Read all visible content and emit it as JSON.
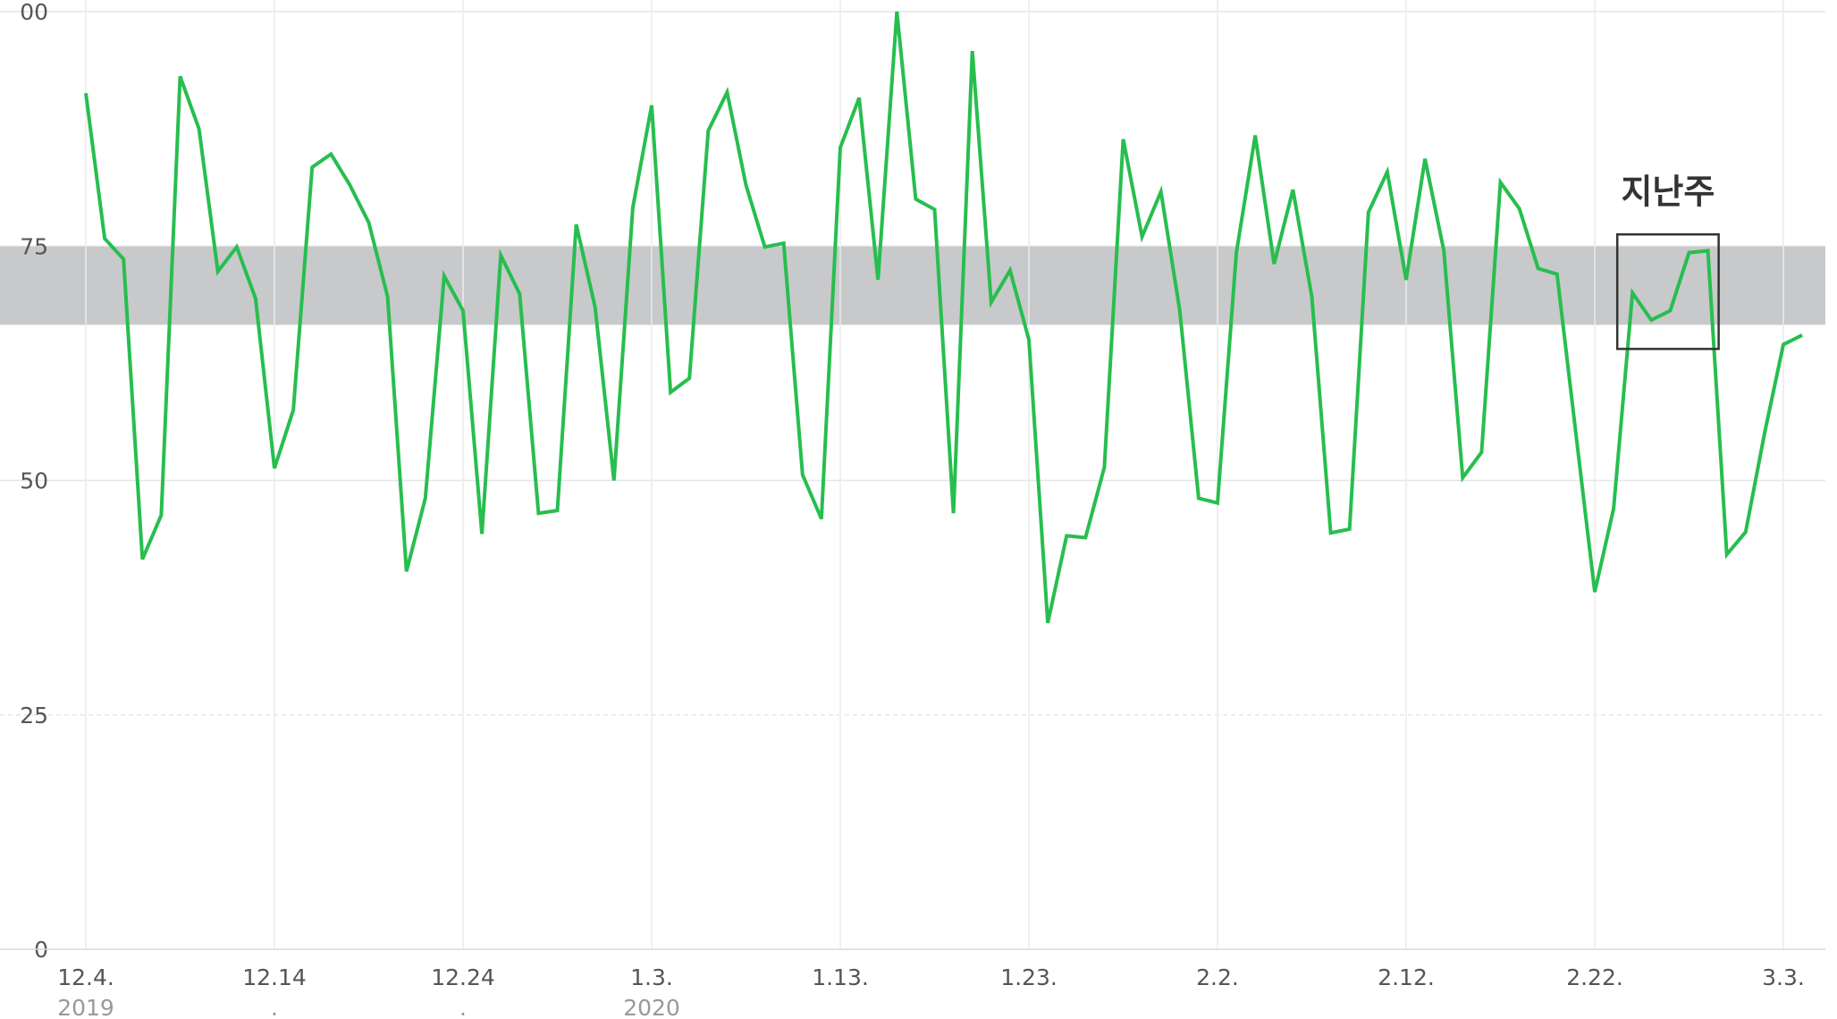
{
  "chart_data": {
    "type": "line",
    "categories": [
      "12.4.",
      null,
      null,
      null,
      null,
      null,
      null,
      null,
      null,
      null,
      "12.14",
      null,
      null,
      null,
      null,
      null,
      null,
      null,
      null,
      null,
      "12.24",
      null,
      null,
      null,
      null,
      null,
      null,
      null,
      null,
      null,
      "1.3.",
      null,
      null,
      null,
      null,
      null,
      null,
      null,
      null,
      null,
      "1.13.",
      null,
      null,
      null,
      null,
      null,
      null,
      null,
      null,
      null,
      "1.23.",
      null,
      null,
      null,
      null,
      null,
      null,
      null,
      null,
      null,
      "2.2.",
      null,
      null,
      null,
      null,
      null,
      null,
      null,
      null,
      null,
      "2.12.",
      null,
      null,
      null,
      null,
      null,
      null,
      null,
      null,
      null,
      "2.22.",
      null,
      null,
      null,
      null,
      null,
      null,
      null,
      null,
      null,
      "3.3.",
      null
    ],
    "category_sublabels": [
      "2019",
      null,
      null,
      null,
      null,
      null,
      null,
      null,
      null,
      null,
      ".",
      null,
      null,
      null,
      null,
      null,
      null,
      null,
      null,
      null,
      ".",
      null,
      null,
      null,
      null,
      null,
      null,
      null,
      null,
      null,
      "2020",
      null,
      null,
      null,
      null,
      null,
      null,
      null,
      null,
      null,
      null,
      null,
      null,
      null,
      null,
      null,
      null,
      null,
      null,
      null,
      null,
      null,
      null,
      null,
      null,
      null,
      null,
      null,
      null,
      null,
      null,
      null,
      null,
      null,
      null,
      null,
      null,
      null,
      null,
      null,
      null,
      null,
      null,
      null,
      null,
      null,
      null,
      null,
      null,
      null,
      null,
      null,
      null,
      null,
      null,
      null,
      null,
      null,
      null,
      null,
      null,
      null
    ],
    "series": [
      {
        "name": null,
        "color": "#27be4f",
        "values": [
          91.3,
          75.8,
          73.6,
          41.6,
          46.3,
          93.1,
          87.5,
          72.3,
          74.9,
          69.4,
          51.3,
          57.5,
          83.4,
          84.8,
          81.5,
          77.5,
          69.6,
          40.3,
          48.1,
          71.8,
          68.1,
          44.3,
          74,
          69.9,
          46.5,
          46.8,
          77.3,
          68.5,
          50,
          79.1,
          90,
          59.4,
          60.9,
          87.3,
          91.4,
          81.5,
          74.9,
          75.3,
          50.6,
          45.9,
          85.5,
          90.8,
          71.4,
          100,
          80,
          78.9,
          46.5,
          95.8,
          69,
          72.4,
          65,
          34.8,
          44.1,
          43.9,
          51.4,
          86.4,
          76,
          80.8,
          68.1,
          48.1,
          47.6,
          74.3,
          86.8,
          73.1,
          81,
          69.6,
          44.4,
          44.8,
          78.6,
          82.9,
          71.4,
          84.3,
          74.5,
          50.3,
          53,
          81.8,
          79,
          72.6,
          72,
          55,
          38.1,
          47,
          70,
          67.1,
          68.1,
          74.3,
          74.5,
          42.1,
          44.5,
          55,
          64.5,
          65.5
        ]
      }
    ],
    "ylim": [
      0,
      100
    ],
    "yticks": [
      0,
      25,
      50,
      75,
      {
        "value": 100,
        "label": "00"
      }
    ],
    "grid": true,
    "band": {
      "range": [
        66.6,
        75
      ],
      "color": "#c8c9ca"
    },
    "annotation": {
      "text": "지난주",
      "from": 82,
      "to": 86
    }
  }
}
